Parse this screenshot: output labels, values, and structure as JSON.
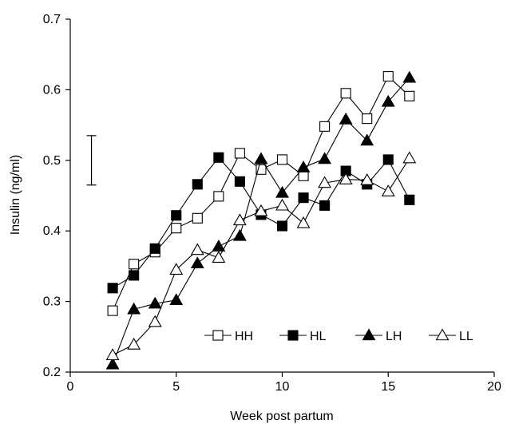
{
  "chart_data": {
    "type": "line",
    "xlabel": "Week post partum",
    "ylabel": "Insulin (ng/ml)",
    "xlim": [
      0,
      20
    ],
    "ylim": [
      0.2,
      0.7
    ],
    "xticks": [
      0,
      5,
      10,
      15,
      20
    ],
    "yticks": [
      0.2,
      0.3,
      0.4,
      0.5,
      0.6,
      0.7
    ],
    "xtick_labels": [
      "0",
      "5",
      "10",
      "15",
      "20"
    ],
    "ytick_labels": [
      "0.2",
      "0.3",
      "0.4",
      "0.5",
      "0.6",
      "0.7"
    ],
    "grid": false,
    "legend_position": "bottom-right",
    "error_bar": {
      "x": 1.0,
      "low": 0.465,
      "high": 0.535
    },
    "x": [
      2,
      3,
      4,
      5,
      6,
      7,
      8,
      9,
      10,
      11,
      12,
      13,
      14,
      15,
      16
    ],
    "series": [
      {
        "name": "HH",
        "marker": "square-open",
        "values": [
          0.287,
          0.353,
          0.37,
          0.404,
          0.418,
          0.449,
          0.51,
          0.487,
          0.501,
          0.478,
          0.548,
          0.595,
          0.559,
          0.619,
          0.591
        ]
      },
      {
        "name": "HL",
        "marker": "square-filled",
        "values": [
          0.319,
          0.337,
          0.375,
          0.422,
          0.466,
          0.504,
          0.47,
          0.423,
          0.407,
          0.447,
          0.436,
          0.485,
          0.466,
          0.501,
          0.444
        ]
      },
      {
        "name": "LH",
        "marker": "triangle-filled",
        "values": [
          0.211,
          0.289,
          0.297,
          0.302,
          0.354,
          0.378,
          0.393,
          0.502,
          0.454,
          0.49,
          0.502,
          0.558,
          0.528,
          0.583,
          0.617
        ]
      },
      {
        "name": "LL",
        "marker": "triangle-open",
        "values": [
          0.224,
          0.239,
          0.271,
          0.345,
          0.373,
          0.362,
          0.415,
          0.428,
          0.436,
          0.411,
          0.468,
          0.473,
          0.472,
          0.456,
          0.503
        ]
      }
    ]
  }
}
